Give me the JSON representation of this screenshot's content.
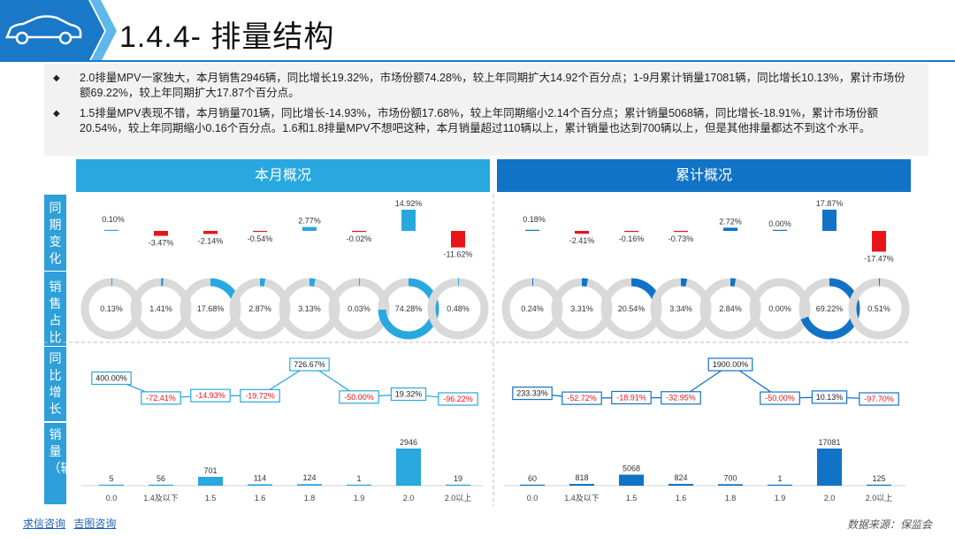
{
  "title": "1.4.4- 排量结构",
  "header_icon": "car-icon",
  "colors": {
    "month": "#29a8e0",
    "cumulative": "#1173c6",
    "negative": "#e8141a",
    "ring_bg": "#d9d9d9"
  },
  "bullets": [
    "2.0排量MPV一家独大，本月销售2946辆，同比增长19.32%，市场份额74.28%，较上年同期扩大14.92个百分点；1-9月累计销量17081辆，同比增长10.13%，累计市场份额69.22%，较上年同期扩大17.87个百分点。",
    "1.5排量MPV表现不错，本月销量701辆，同比增长-14.93%，市场份额17.68%，较上年同期缩小2.14个百分点；累计销量5068辆，同比增长-18.91%，累计市场份额20.54%，较上年同期缩小0.16个百分点。1.6和1.8排量MPV不想吧这种，本月销量超过110辆以上，累计销量也达到700辆以上，但是其他排量都达不到这个水平。"
  ],
  "panels": {
    "month": "本月概况",
    "cumulative": "累计概况"
  },
  "row_labels": [
    "同期变化",
    "销售占比",
    "同比增长",
    "销量（辆）"
  ],
  "footer": {
    "links": [
      "求信咨询",
      "吉图咨询"
    ],
    "source": "数据来源：保监会"
  },
  "chart_data": [
    {
      "id": "month-share-change",
      "type": "bar",
      "categories": [
        "0.0",
        "1.4及以下",
        "1.5",
        "1.6",
        "1.8",
        "1.9",
        "2.0",
        "2.0以上"
      ],
      "values": [
        0.1,
        -3.47,
        -2.14,
        -0.54,
        2.77,
        -0.02,
        14.92,
        -11.62
      ],
      "labels": [
        "0.10%",
        "-3.47%",
        "-2.14%",
        "-0.54%",
        "2.77%",
        "-0.02%",
        "14.92%",
        "-11.62%"
      ]
    },
    {
      "id": "month-share",
      "type": "pie",
      "categories": [
        "0.0",
        "1.4及以下",
        "1.5",
        "1.6",
        "1.8",
        "1.9",
        "2.0",
        "2.0以上"
      ],
      "values": [
        0.13,
        1.41,
        17.68,
        2.87,
        3.13,
        0.03,
        74.28,
        0.48
      ],
      "labels": [
        "0.13%",
        "1.41%",
        "17.68%",
        "2.87%",
        "3.13%",
        "0.03%",
        "74.28%",
        "0.48%"
      ]
    },
    {
      "id": "month-growth",
      "type": "line",
      "categories": [
        "0.0",
        "1.4及以下",
        "1.5",
        "1.6",
        "1.8",
        "1.9",
        "2.0",
        "2.0以上"
      ],
      "values": [
        400.0,
        -72.41,
        -14.93,
        -19.72,
        726.67,
        -50.0,
        19.32,
        -96.22
      ],
      "labels": [
        "400.00%",
        "-72.41%",
        "-14.93%",
        "-19.72%",
        "726.67%",
        "-50.00%",
        "19.32%",
        "-96.22%"
      ]
    },
    {
      "id": "month-volume",
      "type": "bar",
      "categories": [
        "0.0",
        "1.4及以下",
        "1.5",
        "1.6",
        "1.8",
        "1.9",
        "2.0",
        "2.0以上"
      ],
      "values": [
        5,
        56,
        701,
        114,
        124,
        1,
        2946,
        19
      ]
    },
    {
      "id": "cum-share-change",
      "type": "bar",
      "categories": [
        "0.0",
        "1.4及以下",
        "1.5",
        "1.6",
        "1.8",
        "1.9",
        "2.0",
        "2.0以上"
      ],
      "values": [
        0.18,
        -2.41,
        -0.16,
        -0.73,
        2.72,
        0.0,
        17.87,
        -17.47
      ],
      "labels": [
        "0.18%",
        "-2.41%",
        "-0.16%",
        "-0.73%",
        "2.72%",
        "0.00%",
        "17.87%",
        "-17.47%"
      ]
    },
    {
      "id": "cum-share",
      "type": "pie",
      "categories": [
        "0.0",
        "1.4及以下",
        "1.5",
        "1.6",
        "1.8",
        "1.9",
        "2.0",
        "2.0以上"
      ],
      "values": [
        0.24,
        3.31,
        20.54,
        3.34,
        2.84,
        0.0,
        69.22,
        0.51
      ],
      "labels": [
        "0.24%",
        "3.31%",
        "20.54%",
        "3.34%",
        "2.84%",
        "0.00%",
        "69.22%",
        "0.51%"
      ]
    },
    {
      "id": "cum-growth",
      "type": "line",
      "categories": [
        "0.0",
        "1.4及以下",
        "1.5",
        "1.6",
        "1.8",
        "1.9",
        "2.0",
        "2.0以上"
      ],
      "values": [
        233.33,
        -52.72,
        -18.91,
        -32.95,
        1900.0,
        -50.0,
        10.13,
        -97.7
      ],
      "labels": [
        "233.33%",
        "-52.72%",
        "-18.91%",
        "-32.95%",
        "1900.00%",
        "-50.00%",
        "10.13%",
        "-97.70%"
      ]
    },
    {
      "id": "cum-volume",
      "type": "bar",
      "categories": [
        "0.0",
        "1.4及以下",
        "1.5",
        "1.6",
        "1.8",
        "1.9",
        "2.0",
        "2.0以上"
      ],
      "values": [
        60,
        818,
        5068,
        824,
        700,
        1,
        17081,
        125
      ]
    }
  ]
}
